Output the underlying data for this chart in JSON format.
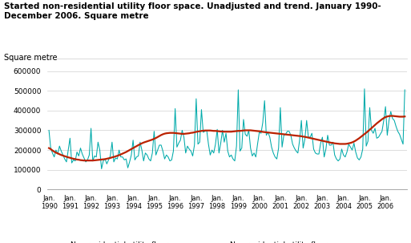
{
  "title": "Started non-residential utility floor space. Unadjusted and trend. January 1990-\nDecember 2006. Square metre",
  "ylabel": "Square metre",
  "unadjusted": [
    300000,
    210000,
    185000,
    165000,
    200000,
    180000,
    220000,
    195000,
    175000,
    155000,
    140000,
    200000,
    260000,
    135000,
    150000,
    145000,
    190000,
    170000,
    210000,
    180000,
    160000,
    140000,
    150000,
    175000,
    310000,
    145000,
    170000,
    165000,
    240000,
    200000,
    105000,
    145000,
    155000,
    130000,
    150000,
    170000,
    240000,
    140000,
    160000,
    155000,
    200000,
    165000,
    165000,
    150000,
    155000,
    110000,
    140000,
    175000,
    250000,
    150000,
    165000,
    170000,
    240000,
    200000,
    145000,
    185000,
    175000,
    155000,
    145000,
    185000,
    295000,
    175000,
    200000,
    225000,
    225000,
    195000,
    155000,
    175000,
    165000,
    145000,
    150000,
    195000,
    410000,
    215000,
    235000,
    250000,
    300000,
    265000,
    185000,
    220000,
    205000,
    195000,
    170000,
    225000,
    460000,
    230000,
    240000,
    405000,
    290000,
    295000,
    300000,
    230000,
    175000,
    200000,
    185000,
    230000,
    305000,
    185000,
    235000,
    300000,
    240000,
    285000,
    195000,
    165000,
    175000,
    155000,
    145000,
    220000,
    505000,
    195000,
    210000,
    355000,
    280000,
    270000,
    300000,
    210000,
    170000,
    185000,
    165000,
    230000,
    290000,
    285000,
    340000,
    450000,
    275000,
    290000,
    265000,
    215000,
    185000,
    165000,
    155000,
    210000,
    415000,
    215000,
    275000,
    280000,
    295000,
    295000,
    275000,
    230000,
    210000,
    195000,
    185000,
    250000,
    350000,
    210000,
    255000,
    350000,
    265000,
    265000,
    285000,
    205000,
    185000,
    180000,
    180000,
    235000,
    265000,
    165000,
    205000,
    275000,
    225000,
    225000,
    240000,
    175000,
    155000,
    145000,
    155000,
    205000,
    175000,
    165000,
    190000,
    230000,
    215000,
    200000,
    235000,
    190000,
    160000,
    150000,
    165000,
    205000,
    510000,
    220000,
    245000,
    415000,
    300000,
    285000,
    310000,
    260000,
    265000,
    280000,
    295000,
    350000,
    420000,
    275000,
    350000,
    395000,
    360000,
    350000,
    320000,
    295000,
    280000,
    255000,
    230000,
    505000
  ],
  "trend": [
    210000,
    205000,
    198000,
    192000,
    187000,
    183000,
    179000,
    175000,
    172000,
    169000,
    166000,
    163000,
    161000,
    158000,
    156000,
    154000,
    152000,
    151000,
    149000,
    148000,
    147000,
    147000,
    147000,
    147000,
    147000,
    147000,
    148000,
    149000,
    150000,
    151000,
    152000,
    153000,
    154000,
    156000,
    158000,
    160000,
    163000,
    165000,
    168000,
    171000,
    174000,
    178000,
    182000,
    186000,
    190000,
    195000,
    200000,
    205000,
    210000,
    215000,
    220000,
    225000,
    230000,
    234000,
    238000,
    241000,
    244000,
    247000,
    250000,
    253000,
    257000,
    261000,
    266000,
    271000,
    276000,
    280000,
    283000,
    285000,
    286000,
    287000,
    287000,
    287000,
    286000,
    285000,
    284000,
    283000,
    282000,
    282000,
    283000,
    284000,
    285000,
    287000,
    288000,
    290000,
    292000,
    294000,
    295000,
    297000,
    298000,
    299000,
    299000,
    299000,
    299000,
    298000,
    297000,
    297000,
    296000,
    295000,
    294000,
    294000,
    293000,
    293000,
    293000,
    293000,
    293000,
    294000,
    295000,
    296000,
    297000,
    297000,
    298000,
    299000,
    300000,
    300000,
    300000,
    300000,
    299000,
    298000,
    297000,
    296000,
    295000,
    294000,
    292000,
    291000,
    290000,
    289000,
    288000,
    287000,
    286000,
    285000,
    284000,
    283000,
    282000,
    281000,
    280000,
    279000,
    278000,
    277000,
    276000,
    275000,
    274000,
    273000,
    272000,
    271000,
    270000,
    268000,
    267000,
    265000,
    263000,
    261000,
    259000,
    257000,
    255000,
    253000,
    251000,
    249000,
    247000,
    245000,
    243000,
    241000,
    239000,
    237000,
    236000,
    234000,
    233000,
    232000,
    231000,
    231000,
    231000,
    231000,
    232000,
    234000,
    236000,
    239000,
    243000,
    248000,
    254000,
    260000,
    267000,
    274000,
    281000,
    288000,
    295000,
    303000,
    311000,
    319000,
    327000,
    335000,
    342000,
    349000,
    356000,
    362000,
    367000,
    370000,
    372000,
    373000,
    373000,
    372000,
    371000,
    370000,
    369000,
    369000,
    369000,
    370000
  ],
  "unadjusted_color": "#00AAAA",
  "trend_color": "#BB2200",
  "unadjusted_label": "Non-residential utility floor space,\nunadjusted",
  "trend_label": "Non-residential utility floor space,\ntrend",
  "yticks": [
    0,
    100000,
    200000,
    300000,
    400000,
    500000,
    600000
  ],
  "xtick_years": [
    1990,
    1991,
    1992,
    1993,
    1994,
    1995,
    1996,
    1997,
    1998,
    1999,
    2000,
    2001,
    2002,
    2003,
    2004,
    2005,
    2006
  ],
  "ylim": [
    0,
    640000
  ],
  "background_color": "#FFFFFF",
  "grid_color": "#D0D0D0"
}
